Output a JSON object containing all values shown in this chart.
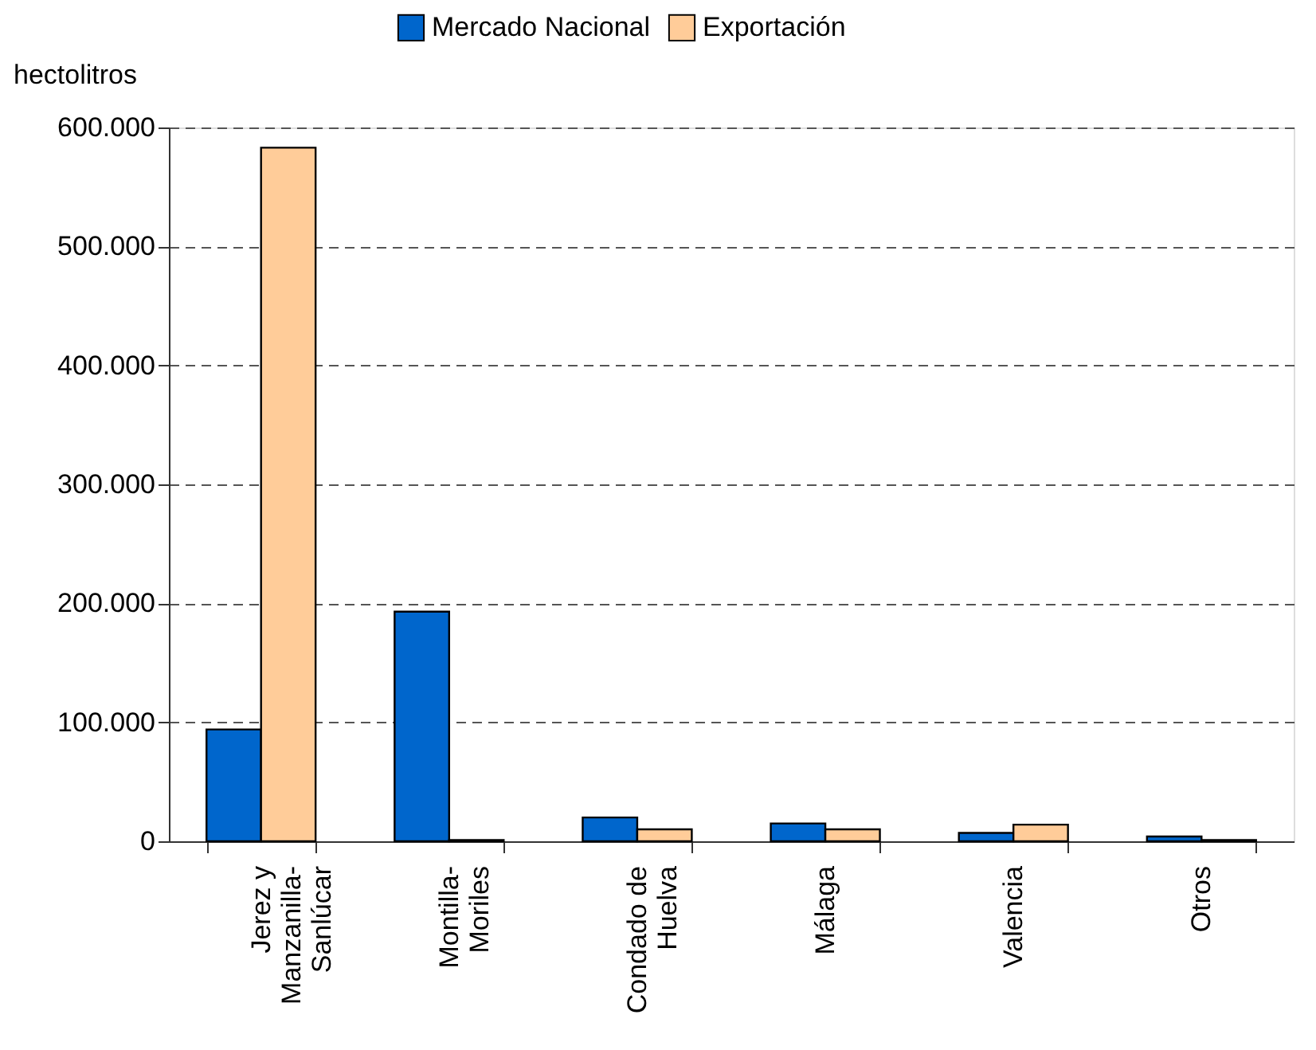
{
  "chart_data": {
    "type": "bar",
    "ylabel": "hectolitros",
    "categories": [
      "Jerez y Manzanilla-Sanlúcar",
      "Montilla-Moriles",
      "Condado de Huelva",
      "Málaga",
      "Valencia",
      "Otros"
    ],
    "series": [
      {
        "name": "Mercado Nacional",
        "color": "#0066cc",
        "values": [
          94000,
          193000,
          20000,
          15000,
          7000,
          4000
        ]
      },
      {
        "name": "Exportación",
        "color": "#ffcc99",
        "values": [
          583000,
          1000,
          10000,
          10000,
          14000,
          1000
        ]
      }
    ],
    "ylim": [
      0,
      600000
    ],
    "yticks": [
      0,
      {
        "value": 100000,
        "label": "100.000"
      },
      {
        "value": 200000,
        "label": "200.000"
      },
      {
        "value": 300000,
        "label": "300.000"
      },
      {
        "value": 400000,
        "label": "400.000"
      },
      {
        "value": 500000,
        "label": "500.000"
      },
      {
        "value": 600000,
        "label": "600.000"
      }
    ],
    "grid": "y",
    "legend": "top"
  }
}
